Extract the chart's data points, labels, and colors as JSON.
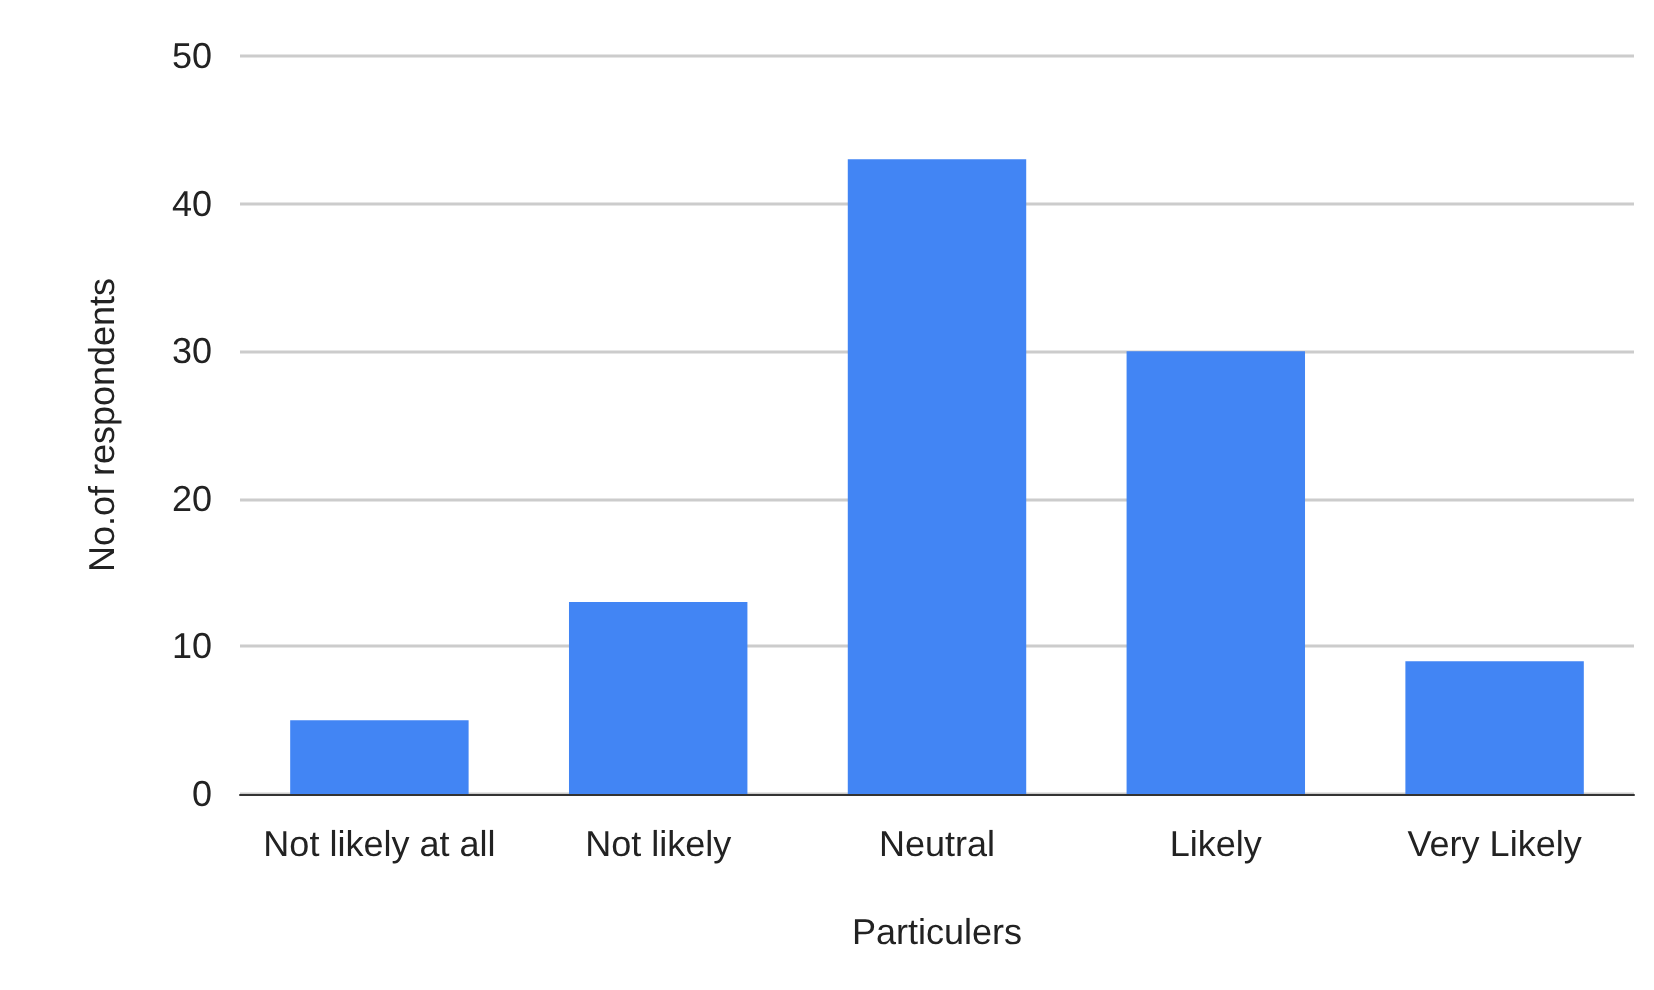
{
  "chart_data": {
    "type": "bar",
    "xlabel": "Particulers",
    "ylabel": "No.of respondents",
    "categories": [
      "Not likely at all",
      "Not likely",
      "Neutral",
      "Likely",
      "Very Likely"
    ],
    "values": [
      5,
      13,
      43,
      30,
      9
    ],
    "color": "#4285f4",
    "ylim": [
      0,
      50
    ],
    "yticks": [
      0,
      10,
      20,
      30,
      40,
      50
    ],
    "grid": "y"
  }
}
